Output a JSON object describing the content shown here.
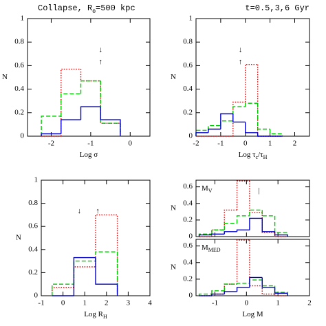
{
  "chart_data": [
    {
      "type": "histogram",
      "title": [
        {
          "text": "Collapse,  R"
        },
        {
          "text": "0",
          "sub": true
        },
        {
          "text": "=500 kpc"
        }
      ],
      "xlabel": [
        {
          "text": "Log σ"
        }
      ],
      "ylabel": "N",
      "xlim": [
        -2.6,
        0.5
      ],
      "ylim": [
        0,
        1
      ],
      "xticks": [
        -2,
        -1,
        0
      ],
      "yticks": [
        0,
        0.2,
        0.4,
        0.6,
        0.8,
        1
      ],
      "bins": [
        -2.25,
        -1.75,
        -1.25,
        -0.75,
        -0.25
      ],
      "series": [
        {
          "color": "#e00000",
          "style": "dotted",
          "values": [
            0,
            0.57,
            0.47,
            0.11
          ]
        },
        {
          "color": "#00c800",
          "style": "dashed",
          "values": [
            0.17,
            0.36,
            0.47,
            0.11
          ]
        },
        {
          "color": "#0000c8",
          "style": "solid",
          "values": [
            0.02,
            0.14,
            0.25,
            0.14
          ]
        }
      ],
      "annotations": [
        {
          "text": "↓",
          "x": -0.75,
          "y": 0.73
        },
        {
          "text": "↑",
          "x": -0.75,
          "y": 0.63
        }
      ]
    },
    {
      "type": "histogram",
      "title": [
        {
          "text": "t=0.5,3,6 Gyr"
        }
      ],
      "xlabel": [
        {
          "text": "Log τ"
        },
        {
          "text": "c",
          "sub": true
        },
        {
          "text": "/τ"
        },
        {
          "text": "H",
          "sub": true
        }
      ],
      "ylabel": "N",
      "xlim": [
        -2,
        2.6
      ],
      "ylim": [
        0,
        1
      ],
      "xticks": [
        -2,
        -1,
        0,
        1,
        2
      ],
      "yticks": [
        0,
        0.2,
        0.4,
        0.6,
        0.8,
        1
      ],
      "bins": [
        -2,
        -1.5,
        -1,
        -0.5,
        0,
        0.5,
        1,
        1.5
      ],
      "series": [
        {
          "color": "#e00000",
          "style": "dotted",
          "values": [
            0,
            0,
            0,
            0.29,
            0.61,
            0,
            0
          ]
        },
        {
          "color": "#00c800",
          "style": "dashed",
          "values": [
            0.05,
            0.09,
            0.13,
            0.25,
            0.28,
            0.06,
            0.02
          ]
        },
        {
          "color": "#0000c8",
          "style": "solid",
          "values": [
            0.03,
            0.06,
            0.19,
            0.12,
            0.03,
            0,
            0
          ]
        }
      ],
      "annotations": [
        {
          "text": "↓",
          "x": -0.2,
          "y": 0.73
        },
        {
          "text": "↑",
          "x": -0.2,
          "y": 0.63
        }
      ]
    },
    {
      "type": "histogram",
      "xlabel": [
        {
          "text": "Log R"
        },
        {
          "text": "H",
          "sub": true
        }
      ],
      "ylabel": "N",
      "xlim": [
        -1,
        4
      ],
      "ylim": [
        0,
        1
      ],
      "xticks": [
        -1,
        0,
        1,
        2,
        3,
        4
      ],
      "yticks": [
        0,
        0.2,
        0.4,
        0.6,
        0.8,
        1
      ],
      "bins": [
        -0.5,
        0.5,
        1.5,
        2.5
      ],
      "series": [
        {
          "color": "#e00000",
          "style": "dotted",
          "values": [
            0.07,
            0.25,
            0.7
          ]
        },
        {
          "color": "#00c800",
          "style": "dashed",
          "values": [
            0.1,
            0.3,
            0.38
          ]
        },
        {
          "color": "#0000c8",
          "style": "solid",
          "values": [
            0,
            0.33,
            0.1
          ]
        }
      ],
      "annotations": [
        {
          "text": "↓",
          "x": 0.75,
          "y": 0.73
        },
        {
          "text": "↑",
          "x": 1.6,
          "y": 0.73
        }
      ]
    },
    {
      "type": "histogram",
      "label": [
        {
          "text": "M"
        },
        {
          "text": "V",
          "sub": true
        }
      ],
      "ylabel": "N",
      "xlim": [
        -1.6,
        2
      ],
      "ylim": [
        0,
        0.68
      ],
      "xticks": [
        -1,
        0,
        1,
        2
      ],
      "yticks": [
        0,
        0.2,
        0.4,
        0.6
      ],
      "xtick_labels": false,
      "bins": [
        -1.5,
        -1.1,
        -0.7,
        -0.3,
        0.1,
        0.5,
        0.9,
        1.3
      ],
      "series": [
        {
          "color": "#e00000",
          "style": "dotted",
          "values": [
            0,
            0.08,
            0.32,
            0.67,
            0.29,
            0.05,
            0
          ]
        },
        {
          "color": "#00c800",
          "style": "dashed",
          "values": [
            0.03,
            0.08,
            0.16,
            0.25,
            0.32,
            0.25,
            0.05
          ]
        },
        {
          "color": "#0000c8",
          "style": "solid",
          "values": [
            0.02,
            0.03,
            0.06,
            0.08,
            0.22,
            0.06,
            0.02
          ]
        }
      ],
      "annotations": [
        {
          "text": "|",
          "x": 0.4,
          "y": 0.55
        }
      ]
    },
    {
      "type": "histogram",
      "label": [
        {
          "text": "M"
        },
        {
          "text": "MED",
          "sub": true
        }
      ],
      "xlabel": [
        {
          "text": "Log M"
        }
      ],
      "ylabel": "N",
      "xlim": [
        -1.6,
        2
      ],
      "ylim": [
        0,
        0.68
      ],
      "xticks": [
        -1,
        0,
        1,
        2
      ],
      "yticks": [
        0,
        0.2,
        0.4,
        0.6
      ],
      "bins": [
        -1.5,
        -1.1,
        -0.7,
        -0.3,
        0.1,
        0.5,
        0.9,
        1.3
      ],
      "series": [
        {
          "color": "#e00000",
          "style": "dotted",
          "values": [
            0,
            0.02,
            0.14,
            0.67,
            0.12,
            0.02,
            0
          ]
        },
        {
          "color": "#00c800",
          "style": "dashed",
          "values": [
            0.02,
            0.06,
            0.14,
            0.15,
            0.19,
            0.12,
            0.04
          ]
        },
        {
          "color": "#0000c8",
          "style": "solid",
          "values": [
            0,
            0.02,
            0.05,
            0.1,
            0.22,
            0.1,
            0.03
          ]
        }
      ]
    }
  ]
}
